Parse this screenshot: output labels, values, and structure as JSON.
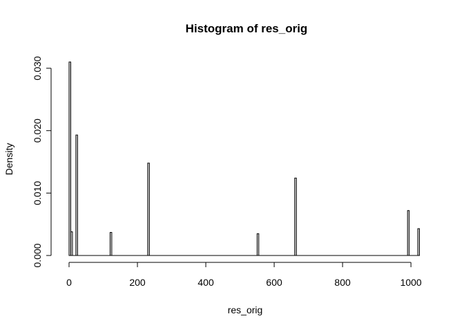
{
  "chart_data": {
    "type": "bar",
    "title": "Histogram of res_orig",
    "xlabel": "res_orig",
    "ylabel": "Density",
    "bin_width": 5,
    "xlim": [
      0,
      1030
    ],
    "ylim": [
      0,
      0.031
    ],
    "x_ticks": [
      0,
      200,
      400,
      600,
      800,
      1000
    ],
    "x_tick_labels": [
      "0",
      "200",
      "400",
      "600",
      "800",
      "1000"
    ],
    "y_ticks": [
      0.0,
      0.01,
      0.02,
      0.03
    ],
    "y_tick_labels": [
      "0.000",
      "0.010",
      "0.020",
      "0.030"
    ],
    "bars": [
      {
        "x0": 0,
        "x1": 5,
        "density": 0.031
      },
      {
        "x0": 5,
        "x1": 10,
        "density": 0.0038
      },
      {
        "x0": 20,
        "x1": 25,
        "density": 0.0193
      },
      {
        "x0": 120,
        "x1": 125,
        "density": 0.0037
      },
      {
        "x0": 230,
        "x1": 235,
        "density": 0.0148
      },
      {
        "x0": 550,
        "x1": 555,
        "density": 0.0035
      },
      {
        "x0": 660,
        "x1": 665,
        "density": 0.0124
      },
      {
        "x0": 990,
        "x1": 995,
        "density": 0.0072
      },
      {
        "x0": 1020,
        "x1": 1025,
        "density": 0.0043
      }
    ],
    "grid": false,
    "legend": "none",
    "bar_fill": "#d3d3d3",
    "bar_stroke": "#000000"
  }
}
